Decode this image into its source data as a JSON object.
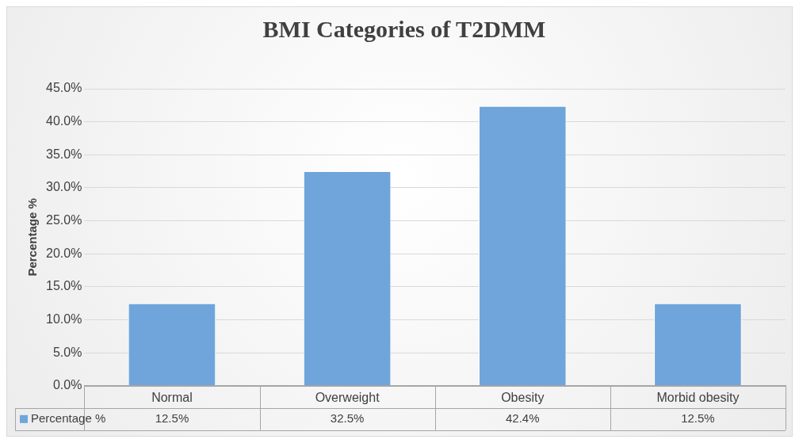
{
  "chart_data": {
    "type": "bar",
    "title": "BMI Categories of T2DMM",
    "ylabel": "Percentage %",
    "categories": [
      "Normal",
      "Overweight",
      "Obesity",
      "Morbid obesity"
    ],
    "series": [
      {
        "name": "Percentage %",
        "color": "#6fa5db",
        "values": [
          12.5,
          32.5,
          42.4,
          12.5
        ],
        "value_labels": [
          "12.5%",
          "32.5%",
          "42.4%",
          "12.5%"
        ]
      }
    ],
    "ylim": [
      0,
      45
    ],
    "yticks": [
      {
        "value": 0,
        "label": "0.0%"
      },
      {
        "value": 5,
        "label": "5.0%"
      },
      {
        "value": 10,
        "label": "10.0%"
      },
      {
        "value": 15,
        "label": "15.0%"
      },
      {
        "value": 20,
        "label": "20.0%"
      },
      {
        "value": 25,
        "label": "25.0%"
      },
      {
        "value": 30,
        "label": "30.0%"
      },
      {
        "value": 35,
        "label": "35.0%"
      },
      {
        "value": 40,
        "label": "40.0%"
      },
      {
        "value": 45,
        "label": "45.0%"
      }
    ],
    "grid": "y",
    "legend": "bottom"
  }
}
